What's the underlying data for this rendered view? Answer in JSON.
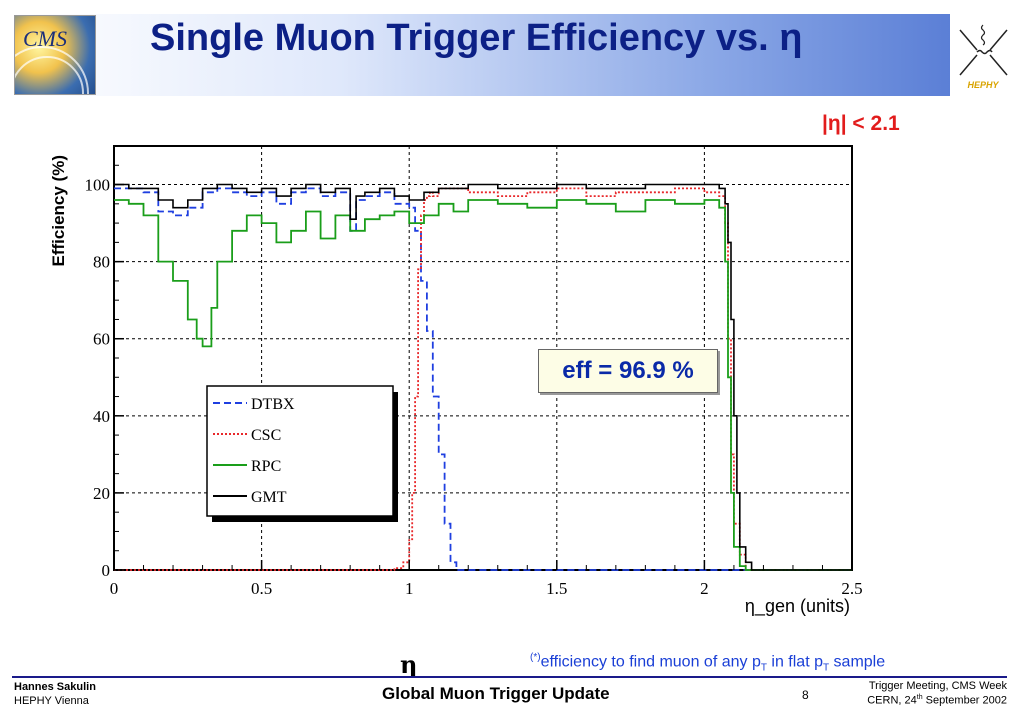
{
  "slide": {
    "title": "Single Muon Trigger Efficiency vs. η",
    "logo_left_text": "CMS",
    "logo_right_text": "HEPHY",
    "eta_cut": "|η| < 2.1",
    "eff_box": "eff = 96.9 %",
    "eta_symbol": "η",
    "footnote": {
      "star": "(*)",
      "part1": "efficiency to find muon of any p",
      "sub1": "T",
      "part2": " in flat p",
      "sub2": "T",
      "part3": " sample"
    }
  },
  "footer": {
    "author": "Hannes Sakulin",
    "institute": "HEPHY Vienna",
    "center": "Global Muon Trigger Update",
    "page": "8",
    "right_line1": "Trigger Meeting, CMS Week",
    "right_line2_a": "CERN, 24",
    "right_line2_sup": "th",
    "right_line2_b": " September 2002"
  },
  "colors": {
    "title": "#0c2086",
    "DTBX": "#1f3fe0",
    "CSC": "#e8282b",
    "RPC": "#1a9e1a",
    "GMT": "#000000",
    "eta_cut": "#e21c1c"
  },
  "chart_data": {
    "type": "line",
    "title": "",
    "xlabel": "η_gen (units)",
    "ylabel": "Efficiency (%)",
    "xlim": [
      0,
      2.5
    ],
    "ylim": [
      0,
      110
    ],
    "grid": true,
    "legend_position": "bottom-left",
    "xticks": [
      "0",
      "0.5",
      "1",
      "1.5",
      "2",
      "2.5"
    ],
    "yticks": [
      "0",
      "20",
      "40",
      "60",
      "80",
      "100"
    ],
    "series": [
      {
        "name": "DTBX",
        "style": "dashed",
        "x": [
          0,
          0.05,
          0.1,
          0.15,
          0.2,
          0.25,
          0.3,
          0.35,
          0.4,
          0.45,
          0.5,
          0.55,
          0.6,
          0.65,
          0.7,
          0.75,
          0.8,
          0.82,
          0.85,
          0.9,
          0.95,
          1.0,
          1.02,
          1.04,
          1.06,
          1.08,
          1.1,
          1.12,
          1.14,
          1.16,
          2.5
        ],
        "y": [
          99,
          99,
          98,
          93,
          92,
          94,
          98,
          99,
          98,
          97,
          98,
          95,
          98,
          99,
          97,
          98,
          88,
          96,
          97,
          98,
          95,
          94,
          88,
          75,
          62,
          45,
          30,
          12,
          2,
          0,
          0
        ]
      },
      {
        "name": "CSC",
        "style": "dotted",
        "x": [
          0,
          0.9,
          0.95,
          0.98,
          1.0,
          1.01,
          1.02,
          1.03,
          1.04,
          1.05,
          1.06,
          1.07,
          1.08,
          1.1,
          1.2,
          1.3,
          1.4,
          1.5,
          1.6,
          1.7,
          1.8,
          1.9,
          2.0,
          2.05,
          2.07,
          2.08,
          2.09,
          2.1,
          2.12,
          2.14,
          2.5
        ],
        "y": [
          0,
          0,
          0.5,
          2,
          8,
          20,
          45,
          78,
          92,
          96,
          97,
          98,
          97,
          99,
          98,
          97,
          98,
          99,
          97,
          98,
          98,
          99,
          98,
          97,
          90,
          60,
          30,
          12,
          4,
          0,
          0
        ]
      },
      {
        "name": "RPC",
        "style": "solid",
        "x": [
          0,
          0.05,
          0.1,
          0.15,
          0.2,
          0.25,
          0.28,
          0.3,
          0.33,
          0.35,
          0.4,
          0.45,
          0.5,
          0.55,
          0.6,
          0.65,
          0.7,
          0.75,
          0.8,
          0.85,
          0.9,
          0.95,
          1.0,
          1.05,
          1.1,
          1.15,
          1.2,
          1.3,
          1.4,
          1.5,
          1.6,
          1.7,
          1.8,
          1.9,
          2.0,
          2.05,
          2.07,
          2.08,
          2.09,
          2.1,
          2.12,
          2.14,
          2.5
        ],
        "y": [
          96,
          95,
          92,
          80,
          75,
          65,
          60,
          58,
          68,
          80,
          88,
          92,
          90,
          85,
          88,
          93,
          86,
          92,
          88,
          91,
          92,
          93,
          90,
          92,
          95,
          93,
          96,
          95,
          94,
          96,
          95,
          93,
          96,
          95,
          96,
          94,
          80,
          50,
          20,
          6,
          1,
          0,
          0
        ]
      },
      {
        "name": "GMT",
        "style": "solid",
        "x": [
          0,
          0.05,
          0.1,
          0.15,
          0.2,
          0.25,
          0.3,
          0.35,
          0.4,
          0.45,
          0.5,
          0.55,
          0.6,
          0.65,
          0.7,
          0.75,
          0.8,
          0.82,
          0.85,
          0.9,
          0.95,
          1.0,
          1.05,
          1.1,
          1.2,
          1.3,
          1.4,
          1.5,
          1.6,
          1.7,
          1.8,
          1.9,
          2.0,
          2.05,
          2.07,
          2.08,
          2.09,
          2.1,
          2.11,
          2.12,
          2.14,
          2.16,
          2.5
        ],
        "y": [
          100,
          99,
          99,
          96,
          94,
          96,
          99,
          100,
          99,
          98,
          99,
          97,
          99,
          100,
          98,
          99,
          91,
          97,
          98,
          99,
          97,
          96,
          98,
          99,
          100,
          99,
          99,
          100,
          99,
          99,
          100,
          100,
          100,
          99,
          95,
          85,
          65,
          40,
          20,
          6,
          2,
          0,
          0
        ]
      }
    ]
  }
}
